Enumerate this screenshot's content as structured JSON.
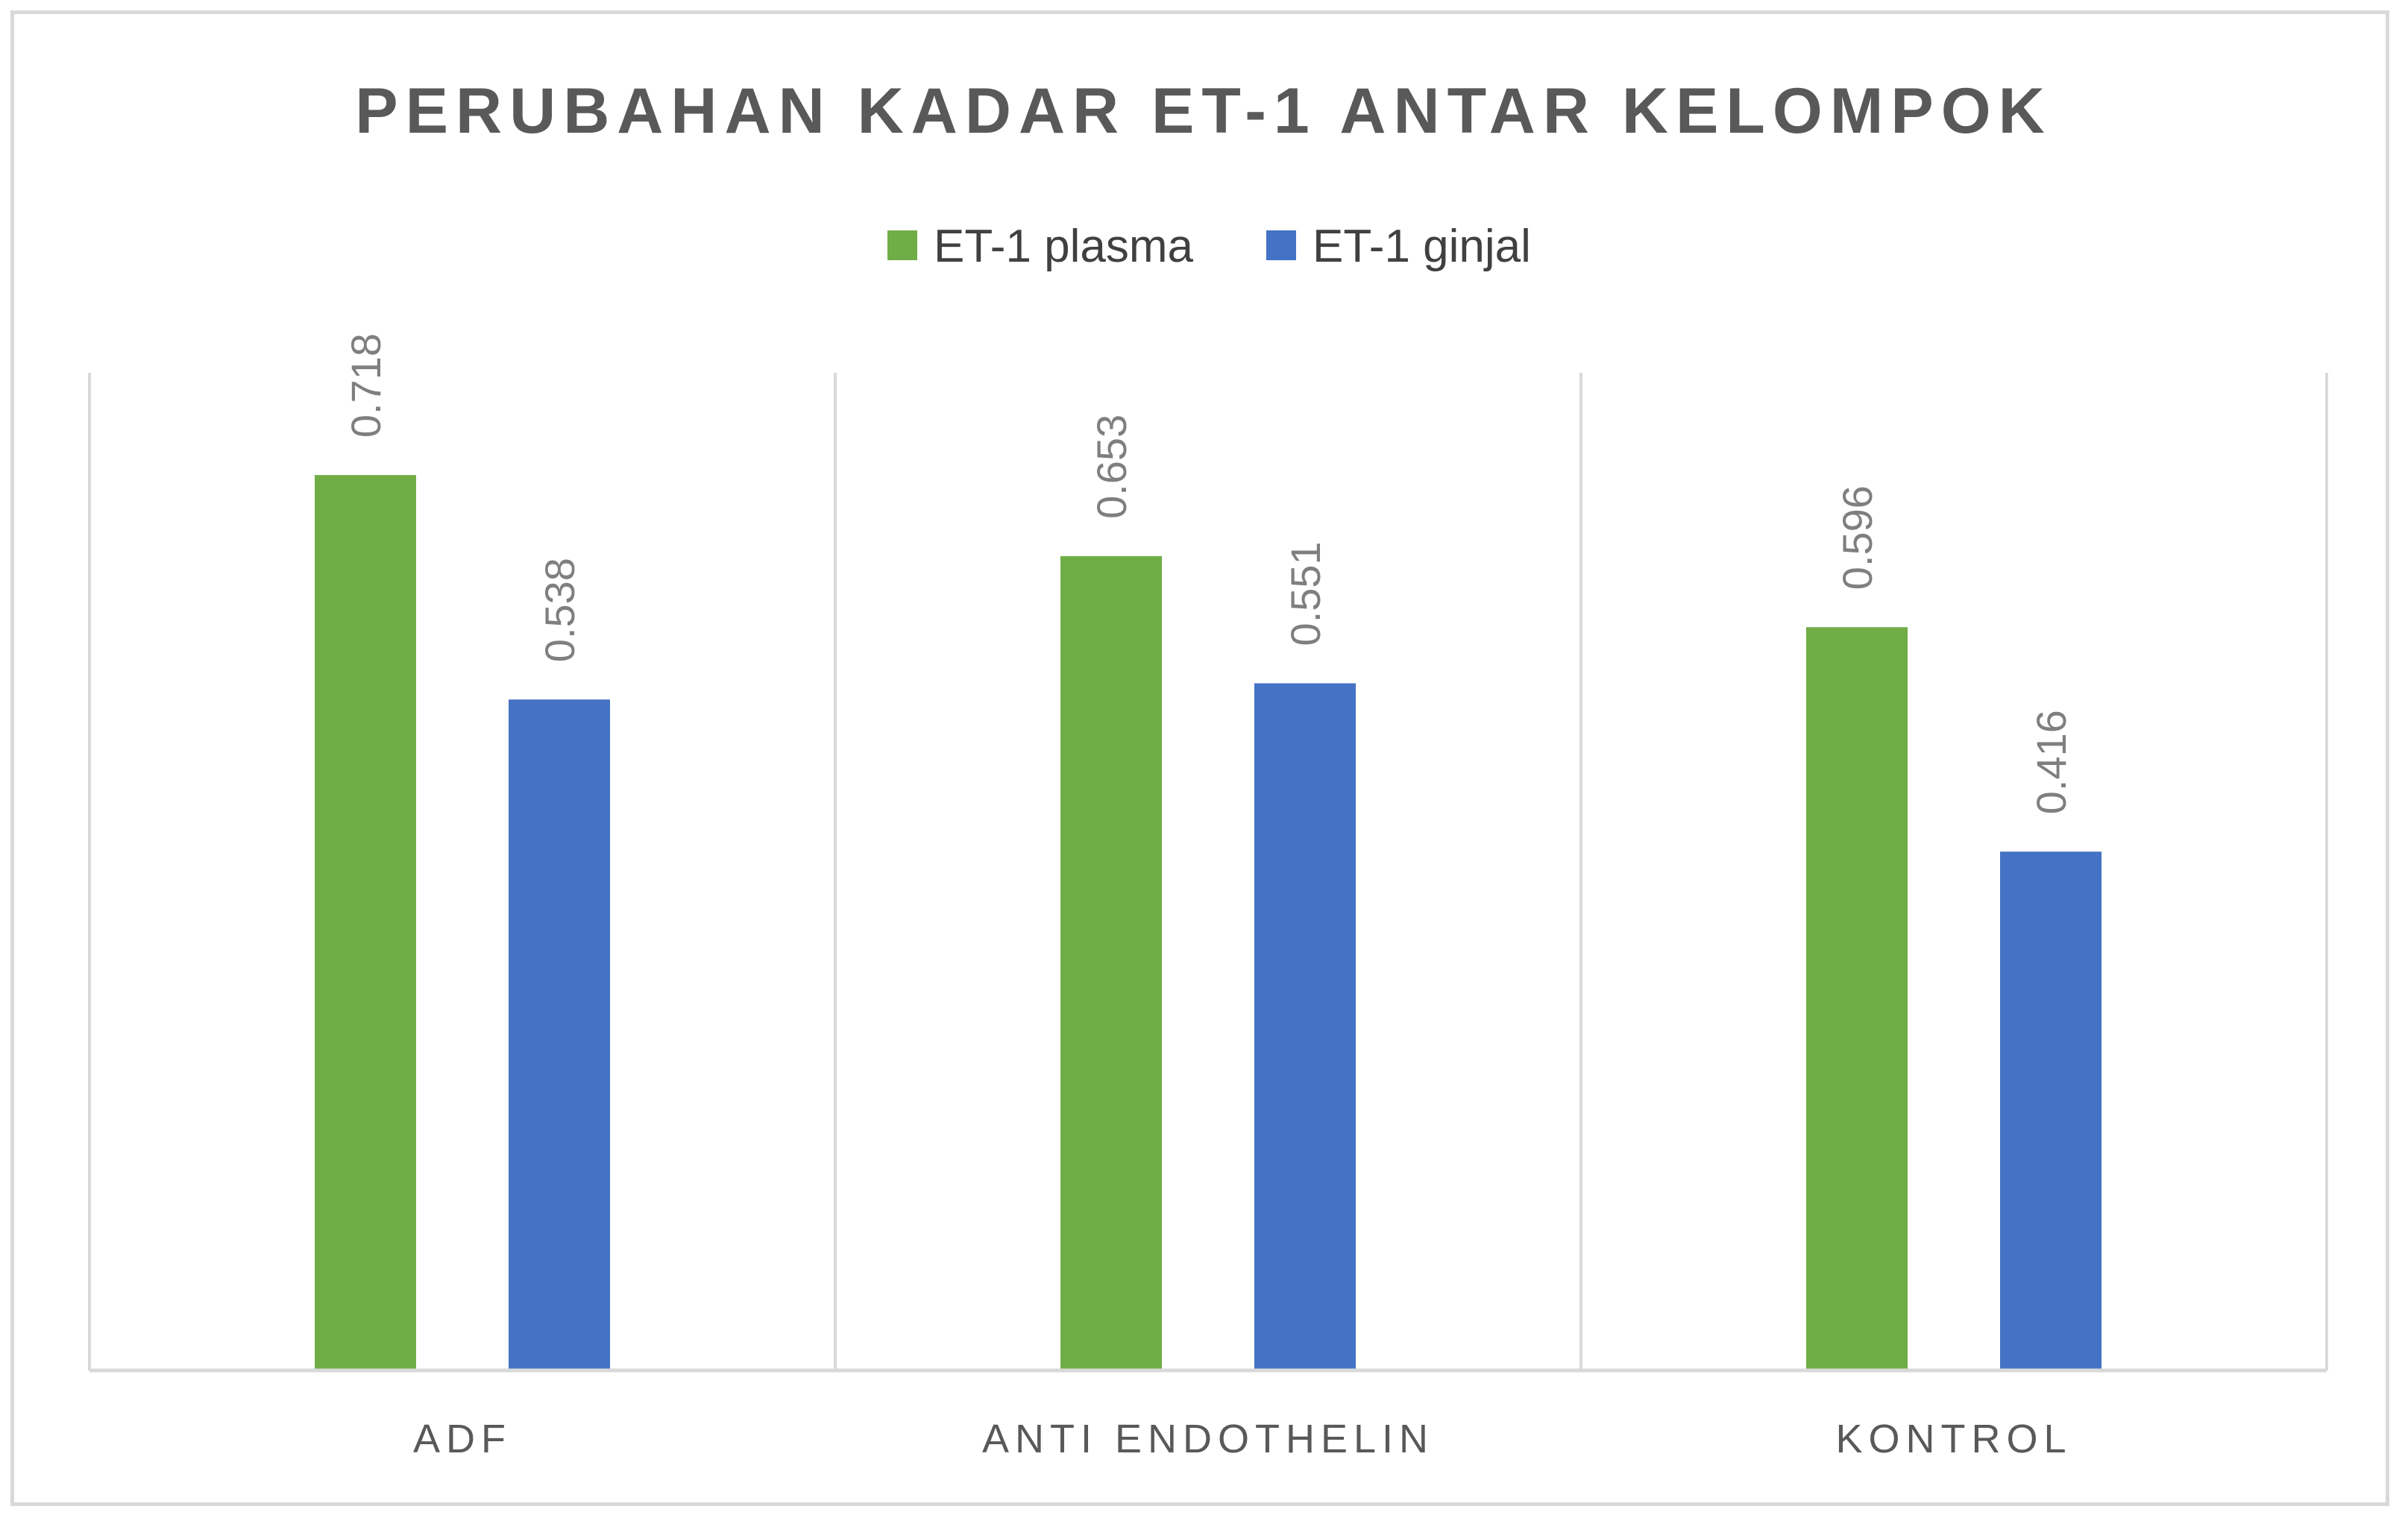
{
  "chart_data": {
    "type": "bar",
    "title": "PERUBAHAN KADAR ET-1 ANTAR KELOMPOK",
    "categories": [
      "ADF",
      "ANTI ENDOTHELIN",
      "KONTROL"
    ],
    "series": [
      {
        "name": "ET-1 plasma",
        "color": "#70ad47",
        "values": [
          0.718,
          0.653,
          0.596
        ]
      },
      {
        "name": "ET-1 ginjal",
        "color": "#4472c4",
        "values": [
          0.538,
          0.551,
          0.416
        ]
      }
    ],
    "data_labels": [
      [
        "0.718",
        "0.653",
        "0.596"
      ],
      [
        "0.538",
        "0.551",
        "0.416"
      ]
    ],
    "ylim": [
      0,
      0.8
    ],
    "legend_position": "top",
    "grid": "vertical category separators",
    "colors": {
      "axis": "#d9d9d9",
      "text": "#595959"
    }
  }
}
